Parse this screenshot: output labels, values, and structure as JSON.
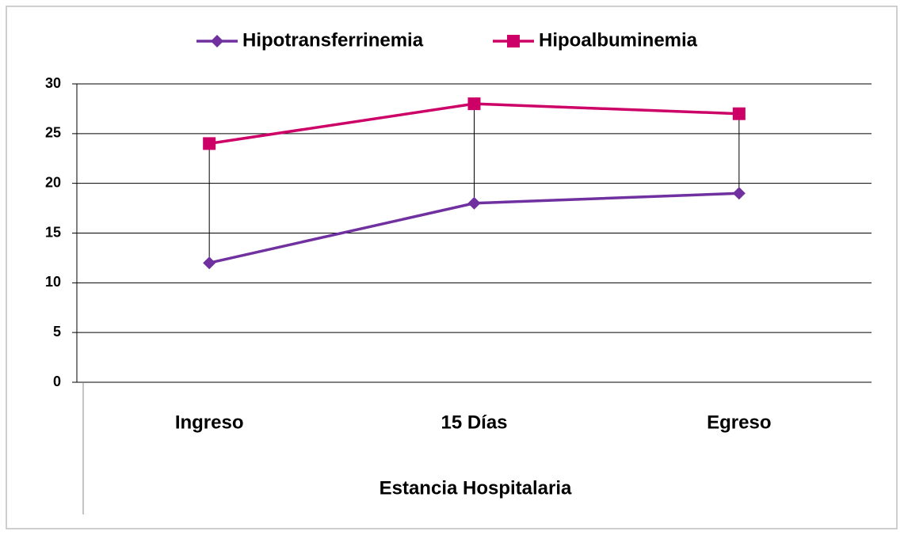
{
  "chart_data": {
    "type": "line",
    "x_label": "Estancia Hospitalaria",
    "categories": [
      "Ingreso",
      "15 Días",
      "Egreso"
    ],
    "series": [
      {
        "name": "Hipotransferrinemia",
        "color": "#7030a0",
        "marker": "diamond",
        "values": [
          12,
          18,
          19
        ]
      },
      {
        "name": "Hipoalbuminemia",
        "color": "#cc0066",
        "marker": "square",
        "values": [
          24,
          28,
          27
        ]
      }
    ],
    "ylim": [
      0,
      30
    ],
    "yticks": [
      0,
      5,
      10,
      15,
      20,
      25,
      30
    ],
    "grid": true,
    "legend": "top",
    "drop_lines": true
  }
}
